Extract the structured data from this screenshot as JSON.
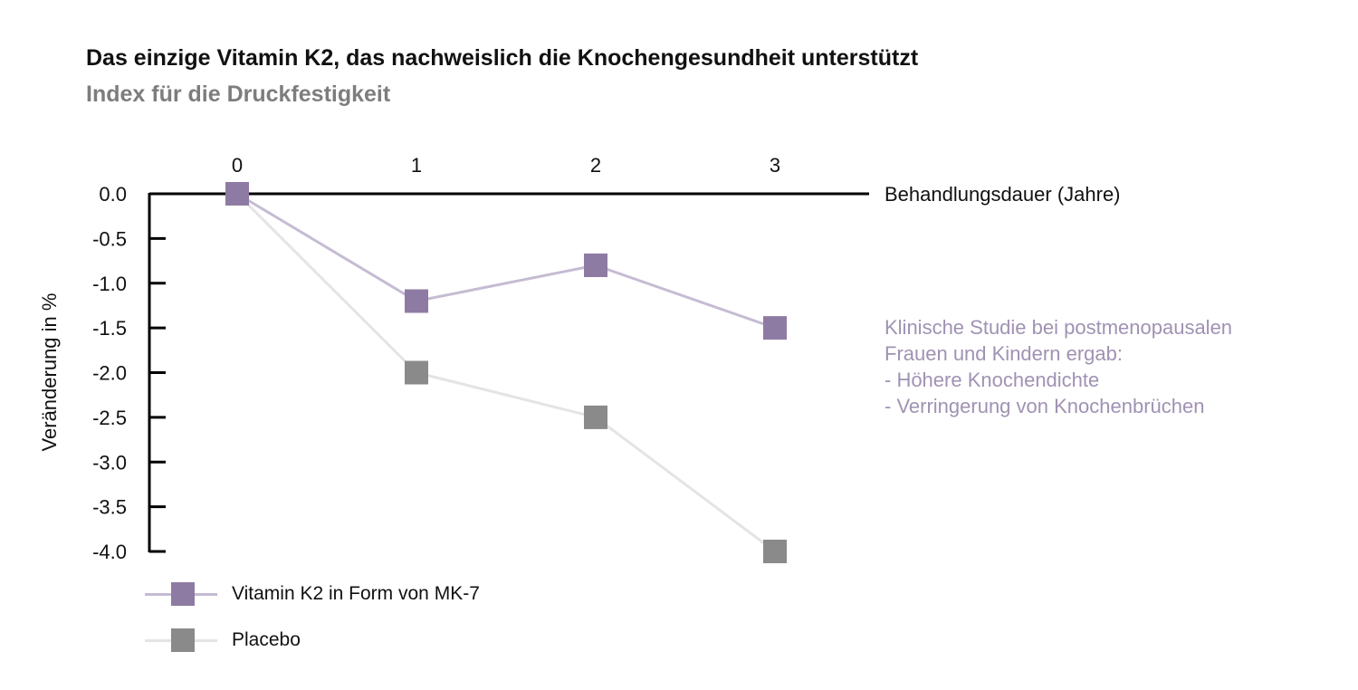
{
  "title": "Das einzige Vitamin K2, das nachweislich die Knochengesundheit unterstützt",
  "subtitle": "Index für die Druckfestigkeit",
  "note": [
    "Klinische Studie bei postmenopausalen",
    "Frauen und Kindern ergab:",
    "- Höhere Knochendichte",
    "- Verringerung von Knochenbrüchen"
  ],
  "chart_data": {
    "type": "line",
    "title": "Das einzige Vitamin K2, das nachweislich die Knochengesundheit unterstützt",
    "subtitle": "Index für die Druckfestigkeit",
    "xlabel": "Behandlungsdauer (Jahre)",
    "ylabel": "Veränderung in %",
    "x": [
      0,
      1,
      2,
      3
    ],
    "x_tick_labels": [
      "0",
      "1",
      "2",
      "3"
    ],
    "y_tick_labels": [
      "0.0",
      "-0.5",
      "-1.0",
      "-1.5",
      "-2.0",
      "-2.5",
      "-3.0",
      "-3.5",
      "-4.0"
    ],
    "ylim": [
      -4.0,
      0.0
    ],
    "xaxis_position": "top",
    "grid": false,
    "legend_position": "bottom-left",
    "series": [
      {
        "name": "Vitamin K2 in Form von MK-7",
        "values": [
          0,
          -1.2,
          -0.8,
          -1.5
        ],
        "marker_color": "#8e7ba3",
        "line_color": "#c6bbd3"
      },
      {
        "name": "Placebo",
        "values": [
          0,
          -2.0,
          -2.5,
          -4.0
        ],
        "marker_color": "#8a8a8a",
        "line_color": "#e4e4e4"
      }
    ]
  }
}
